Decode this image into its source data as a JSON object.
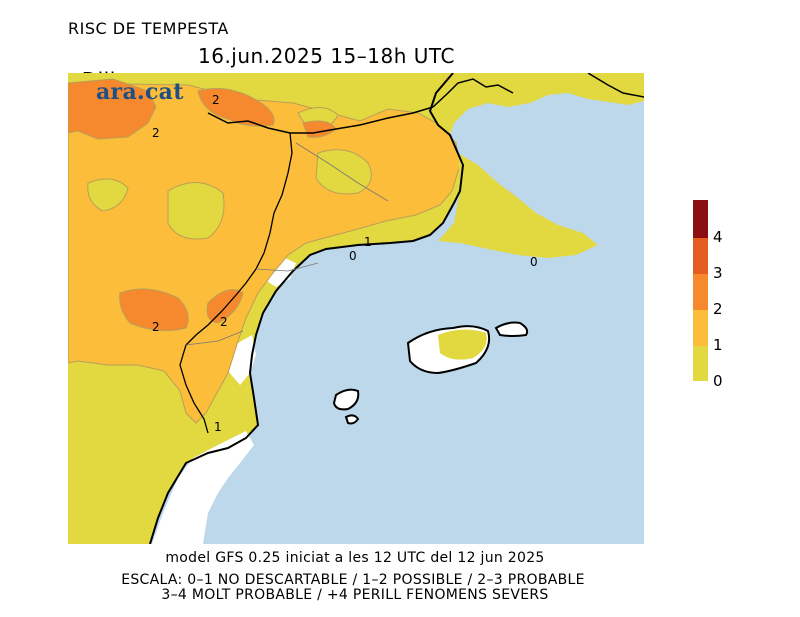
{
  "header": {
    "title": "RISC DE TEMPESTA",
    "day": "Dilluns",
    "date_time": "16.jun.2025 15–18h UTC"
  },
  "logo_text": "ara.cat",
  "map": {
    "contour_labels": [
      "2",
      "2",
      "2",
      "2",
      "1",
      "1",
      "0",
      "0"
    ]
  },
  "legend": {
    "levels": [
      {
        "label": "0",
        "color": "#e2d840"
      },
      {
        "label": "1",
        "color": "#fbbd3a"
      },
      {
        "label": "2",
        "color": "#f6882d"
      },
      {
        "label": "3",
        "color": "#e45c20"
      },
      {
        "label": "4",
        "color": "#8b0f12"
      }
    ]
  },
  "footer": {
    "model": "model GFS 0.25 iniciat a les 12 UTC del 12 jun 2025",
    "scale_line1": "ESCALA: 0–1 NO DESCARTABLE / 1–2 POSSIBLE / 2–3 PROBABLE",
    "scale_line2": "3–4 MOLT PROBABLE / +4 PERILL FENOMENS SEVERS"
  }
}
